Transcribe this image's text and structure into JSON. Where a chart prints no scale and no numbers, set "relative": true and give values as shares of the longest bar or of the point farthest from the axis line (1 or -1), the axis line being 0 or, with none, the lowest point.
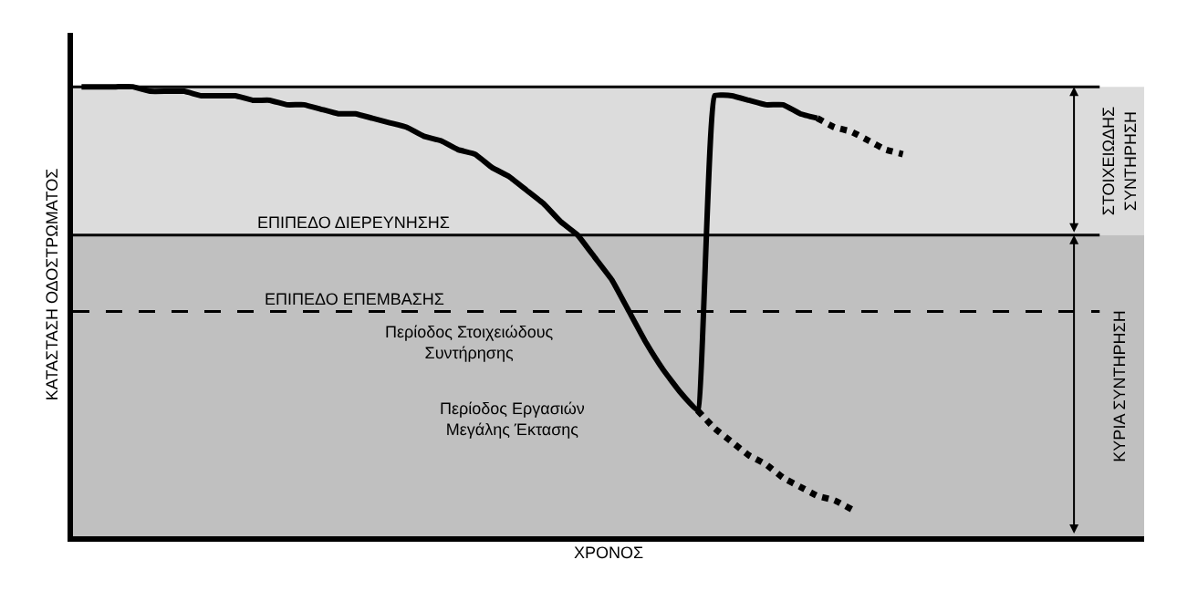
{
  "chart_data": {
    "type": "line",
    "relative": true,
    "xlabel": "ΧΡΟΝΟΣ",
    "ylabel": "ΚΑΤΑΣΤΑΣΗ ΟΔΟΣΤΡΩΜΑΤΟΣ",
    "categories": [
      null,
      null,
      null,
      null,
      null,
      null,
      null,
      null,
      null,
      null,
      null,
      null,
      null,
      null,
      null,
      null,
      null,
      null,
      null,
      null,
      null,
      null,
      null,
      null,
      null,
      null,
      null,
      null,
      null,
      null,
      null,
      null,
      null,
      null,
      null,
      null,
      null,
      null,
      null,
      null,
      null,
      null,
      null,
      null,
      null,
      null,
      null,
      null,
      null,
      null,
      null,
      null,
      null,
      null,
      null,
      null,
      null
    ],
    "series": [
      {
        "color": "#000000",
        "line_style": "solid",
        "values": [
          1.0,
          1.0,
          1.0,
          1.0,
          0.99,
          0.99,
          0.99,
          0.98,
          0.98,
          0.98,
          0.97,
          0.97,
          0.96,
          0.96,
          0.95,
          0.94,
          0.94,
          0.93,
          0.92,
          0.91,
          0.89,
          0.88,
          0.86,
          0.85,
          0.82,
          0.8,
          0.77,
          0.74,
          0.7,
          0.67,
          0.62,
          0.57,
          0.5,
          0.43,
          0.37,
          0.32,
          0.28,
          0.98,
          0.98,
          0.97,
          0.96,
          0.96,
          0.94,
          0.93,
          null,
          null,
          null,
          null,
          null,
          null,
          null,
          null,
          null,
          null,
          null,
          null,
          null
        ]
      },
      {
        "color": "#000000",
        "line_style": "dotted",
        "values": [
          null,
          null,
          null,
          null,
          null,
          null,
          null,
          null,
          null,
          null,
          null,
          null,
          null,
          null,
          null,
          null,
          null,
          null,
          null,
          null,
          null,
          null,
          null,
          null,
          null,
          null,
          null,
          null,
          null,
          null,
          null,
          null,
          null,
          null,
          null,
          null,
          null,
          null,
          null,
          null,
          null,
          null,
          null,
          0.93,
          0.91,
          0.9,
          0.88,
          0.86,
          0.85,
          null,
          null,
          null,
          null,
          null,
          null,
          null,
          null
        ]
      },
      {
        "color": "#000000",
        "line_style": "dotted",
        "values": [
          null,
          null,
          null,
          null,
          null,
          null,
          null,
          null,
          null,
          null,
          null,
          null,
          null,
          null,
          null,
          null,
          null,
          null,
          null,
          null,
          null,
          null,
          null,
          null,
          null,
          null,
          null,
          null,
          null,
          null,
          null,
          null,
          null,
          null,
          null,
          null,
          0.28,
          0.24,
          0.21,
          0.18,
          0.16,
          0.13,
          0.11,
          0.09,
          0.08,
          0.06,
          null,
          null,
          null,
          null,
          null,
          null,
          null,
          null,
          null,
          null,
          null
        ]
      }
    ],
    "ref_lines": [
      {
        "axis": "y",
        "value": 1.0,
        "label": null,
        "color": "#000000",
        "line_style": "solid"
      },
      {
        "axis": "y",
        "value": 0.67,
        "label": "ΕΠΙΠΕΔΟ ΔΙΕΡΕΥΝΗΣΗΣ",
        "color": "#000000",
        "line_style": "solid"
      },
      {
        "axis": "y",
        "value": 0.5,
        "label": "ΕΠΙΠΕΔΟ ΕΠΕΜΒΑΣΗΣ",
        "color": "#000000",
        "line_style": "dashed"
      }
    ],
    "bands": [
      {
        "axis": "y",
        "from": 0.67,
        "to": 1.0,
        "label": "ΣΤΟΙΧΕΙΩΔΗΣ ΣΥΝΤΗΡΗΣΗ",
        "color": "#dcdcdc"
      },
      {
        "axis": "y",
        "from": 0,
        "to": 0.67,
        "label": "ΚΥΡΙΑ ΣΥΝΤΗΡΗΣΗ",
        "color": "#c0c0c0"
      }
    ],
    "annotations": [
      "Περίοδος Στοιχειώδους Συντήρησης",
      "Περίοδος Εργασιών Μεγάλης Έκτασης"
    ],
    "tick_labels": false,
    "grid": false,
    "marker": "none"
  }
}
